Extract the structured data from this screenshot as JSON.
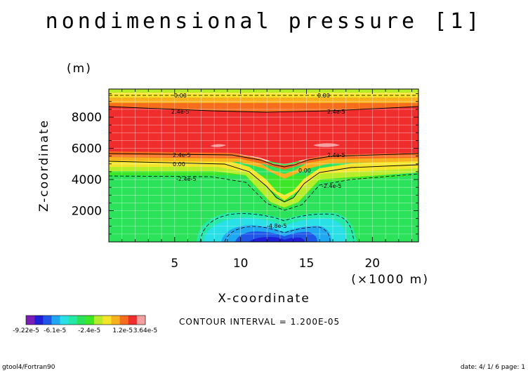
{
  "chart_data": {
    "type": "contour",
    "title": "nondimensional pressure [1]",
    "xlabel": "X-coordinate",
    "x_unit": "(×1000 m)",
    "ylabel": "Z-coordinate",
    "y_unit": "(m)",
    "xlim": [
      0,
      23.5
    ],
    "ylim": [
      0,
      9800
    ],
    "x_ticks": [
      5,
      10,
      15,
      20
    ],
    "y_ticks": [
      2000,
      4000,
      6000,
      8000
    ],
    "grid": true,
    "contour_labels": [
      "0.00",
      "0.00",
      "2.4e-5",
      "2.4e-5",
      "2.4e-5",
      "2.4e-5",
      "0.00",
      "0.00",
      "-2.4e-5",
      "-2.4e-5",
      "-4.8e-5"
    ],
    "contour_interval_text": "CONTOUR INTERVAL = 1.200E-05",
    "colorbar": {
      "labels": [
        "-9.22e-5",
        "-6.1e-5",
        "-2.4e-5",
        "1.2e-5",
        "3.64e-5"
      ],
      "label_positions": [
        -9.22e-05,
        -6.1e-05,
        -2.4e-05,
        1.2e-05,
        3.64e-05
      ],
      "min": -9.22e-05,
      "max": 3.64e-05,
      "colors": [
        "#7a1fb5",
        "#1f1fd6",
        "#1f56e8",
        "#1fa7f2",
        "#28e0e6",
        "#24e8a8",
        "#2be25a",
        "#3ee628",
        "#b7ec2a",
        "#f4e52a",
        "#f7b11e",
        "#f76d1e",
        "#ef2d2d",
        "#f4a0a0"
      ]
    }
  },
  "footer": {
    "left": "gtool4/Fortran90",
    "right": "date: 4/ 1/ 6 page: 1"
  }
}
